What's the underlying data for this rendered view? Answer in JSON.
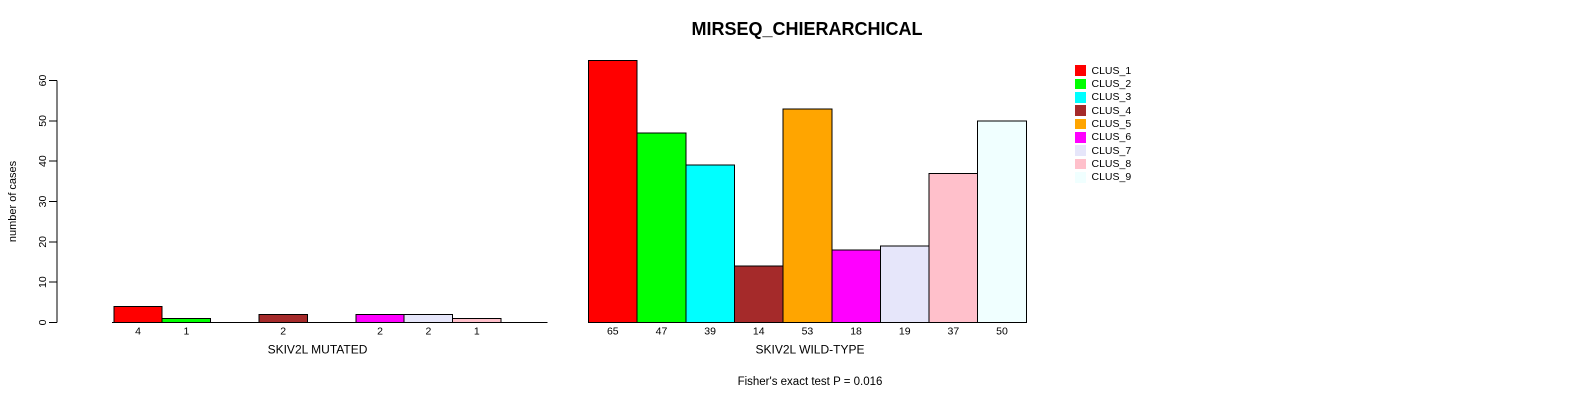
{
  "chart_data": {
    "type": "bar",
    "title": "MIRSEQ_CHIERARCHICAL",
    "ylabel": "number of cases",
    "ylim": [
      0,
      65
    ],
    "yticks": [
      0,
      10,
      20,
      30,
      40,
      50,
      60
    ],
    "categories": [
      "CLUS_1",
      "CLUS_2",
      "CLUS_3",
      "CLUS_4",
      "CLUS_5",
      "CLUS_6",
      "CLUS_7",
      "CLUS_8",
      "CLUS_9"
    ],
    "palette": [
      "#FF0000",
      "#00FF00",
      "#00FFFF",
      "#A52A2A",
      "#FFA500",
      "#FF00FF",
      "#E6E6FA",
      "#FFC0CB",
      "#F0FFFF"
    ],
    "groups": [
      {
        "label": "SKIV2L MUTATED",
        "values": [
          4,
          1,
          0,
          2,
          0,
          2,
          2,
          1,
          0
        ]
      },
      {
        "label": "SKIV2L WILD-TYPE",
        "values": [
          65,
          47,
          39,
          14,
          53,
          18,
          19,
          37,
          50
        ]
      }
    ],
    "legend_position": "right",
    "grid": false,
    "footer": "Fisher's exact test P = 0.016",
    "axis_color": "#000000",
    "bar_border_color": "#000000",
    "background": "#FFFFFF"
  }
}
